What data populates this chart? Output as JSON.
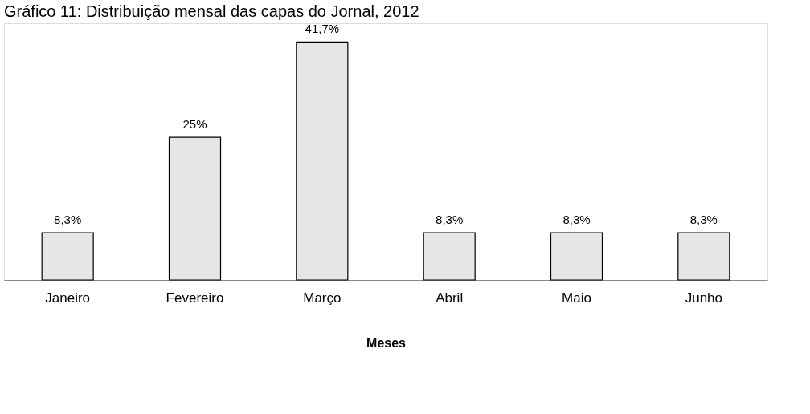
{
  "chart_data": {
    "type": "bar",
    "title": "Gráfico 11: Distribuição mensal das capas do Jornal, 2012",
    "xlabel": "Meses",
    "categories": [
      "Janeiro",
      "Fevereiro",
      "Março",
      "Abril",
      "Maio",
      "Junho"
    ],
    "values": [
      8.3,
      25,
      41.7,
      8.3,
      8.3,
      8.3
    ],
    "value_labels": [
      "8,3%",
      "25%",
      "41,7%",
      "8,3%",
      "8,3%",
      "8,3%"
    ],
    "color": "#e6e6e6"
  }
}
